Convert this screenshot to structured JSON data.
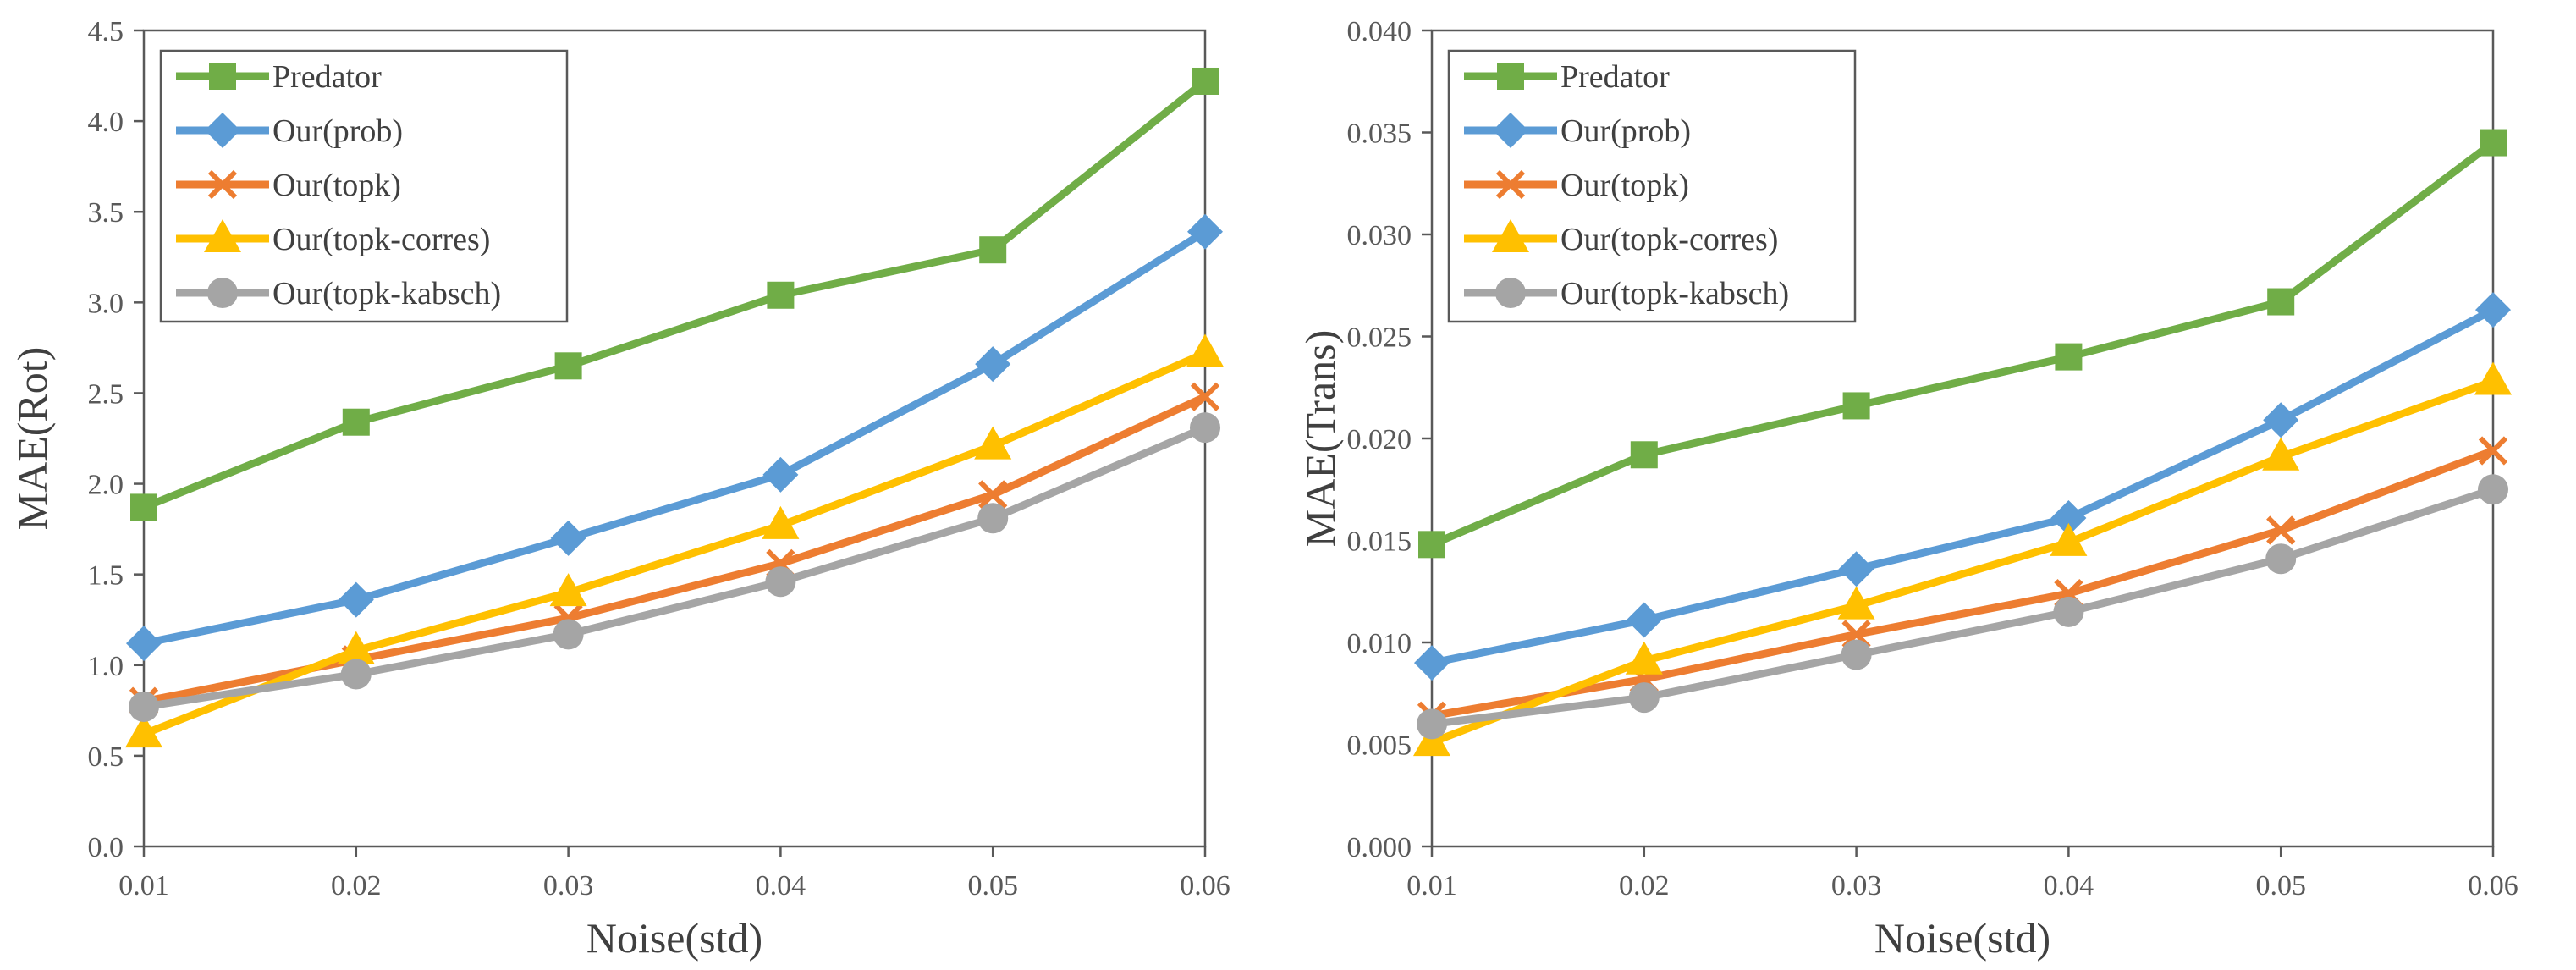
{
  "chart_data": [
    {
      "type": "line",
      "title": "",
      "xlabel": "Noise(std)",
      "ylabel": "MAE(Rot)",
      "x": [
        0.01,
        0.02,
        0.03,
        0.04,
        0.05,
        0.06
      ],
      "x_tick_labels": [
        "0.01",
        "0.02",
        "0.03",
        "0.04",
        "0.05",
        "0.06"
      ],
      "ylim": [
        0,
        4.5
      ],
      "y_ticks": [
        0,
        0.5,
        1.0,
        1.5,
        2.0,
        2.5,
        3.0,
        3.5,
        4.0,
        4.5
      ],
      "y_tick_labels": [
        "0.0",
        "0.5",
        "1.0",
        "1.5",
        "2.0",
        "2.5",
        "3.0",
        "3.5",
        "4.0",
        "4.5"
      ],
      "grid": false,
      "legend_position": "top-left",
      "series": [
        {
          "name": "Predator",
          "color": "#70AD47",
          "marker": "square",
          "values": [
            1.87,
            2.34,
            2.65,
            3.04,
            3.29,
            4.22
          ]
        },
        {
          "name": "Our(prob)",
          "color": "#5B9BD5",
          "marker": "diamond",
          "values": [
            1.12,
            1.36,
            1.7,
            2.05,
            2.66,
            3.39
          ]
        },
        {
          "name": "Our(topk)",
          "color": "#ED7D31",
          "marker": "x",
          "values": [
            0.8,
            1.03,
            1.26,
            1.56,
            1.94,
            2.48
          ]
        },
        {
          "name": "Our(topk-corres)",
          "color": "#FFC000",
          "marker": "triangle",
          "values": [
            0.62,
            1.08,
            1.4,
            1.77,
            2.21,
            2.72
          ]
        },
        {
          "name": "Our(topk-kabsch)",
          "color": "#A5A5A5",
          "marker": "circle",
          "values": [
            0.77,
            0.95,
            1.17,
            1.46,
            1.81,
            2.31
          ]
        }
      ]
    },
    {
      "type": "line",
      "title": "",
      "xlabel": "Noise(std)",
      "ylabel": "MAE(Trans)",
      "x": [
        0.01,
        0.02,
        0.03,
        0.04,
        0.05,
        0.06
      ],
      "x_tick_labels": [
        "0.01",
        "0.02",
        "0.03",
        "0.04",
        "0.05",
        "0.06"
      ],
      "ylim": [
        0,
        0.04
      ],
      "y_ticks": [
        0,
        0.005,
        0.01,
        0.015,
        0.02,
        0.025,
        0.03,
        0.035,
        0.04
      ],
      "y_tick_labels": [
        "0.000",
        "0.005",
        "0.010",
        "0.015",
        "0.020",
        "0.025",
        "0.030",
        "0.035",
        "0.040"
      ],
      "grid": false,
      "legend_position": "top-left",
      "series": [
        {
          "name": "Predator",
          "color": "#70AD47",
          "marker": "square",
          "values": [
            0.0148,
            0.0192,
            0.0216,
            0.024,
            0.0267,
            0.0345
          ]
        },
        {
          "name": "Our(prob)",
          "color": "#5B9BD5",
          "marker": "diamond",
          "values": [
            0.009,
            0.0111,
            0.0136,
            0.0161,
            0.0209,
            0.0263
          ]
        },
        {
          "name": "Our(topk)",
          "color": "#ED7D31",
          "marker": "x",
          "values": [
            0.0064,
            0.0082,
            0.0104,
            0.0124,
            0.0155,
            0.0194
          ]
        },
        {
          "name": "Our(topk-corres)",
          "color": "#FFC000",
          "marker": "triangle",
          "values": [
            0.0051,
            0.0091,
            0.0118,
            0.0149,
            0.0191,
            0.0228
          ]
        },
        {
          "name": "Our(topk-kabsch)",
          "color": "#A5A5A5",
          "marker": "circle",
          "values": [
            0.006,
            0.0073,
            0.0094,
            0.0115,
            0.0141,
            0.0175
          ]
        }
      ]
    }
  ]
}
